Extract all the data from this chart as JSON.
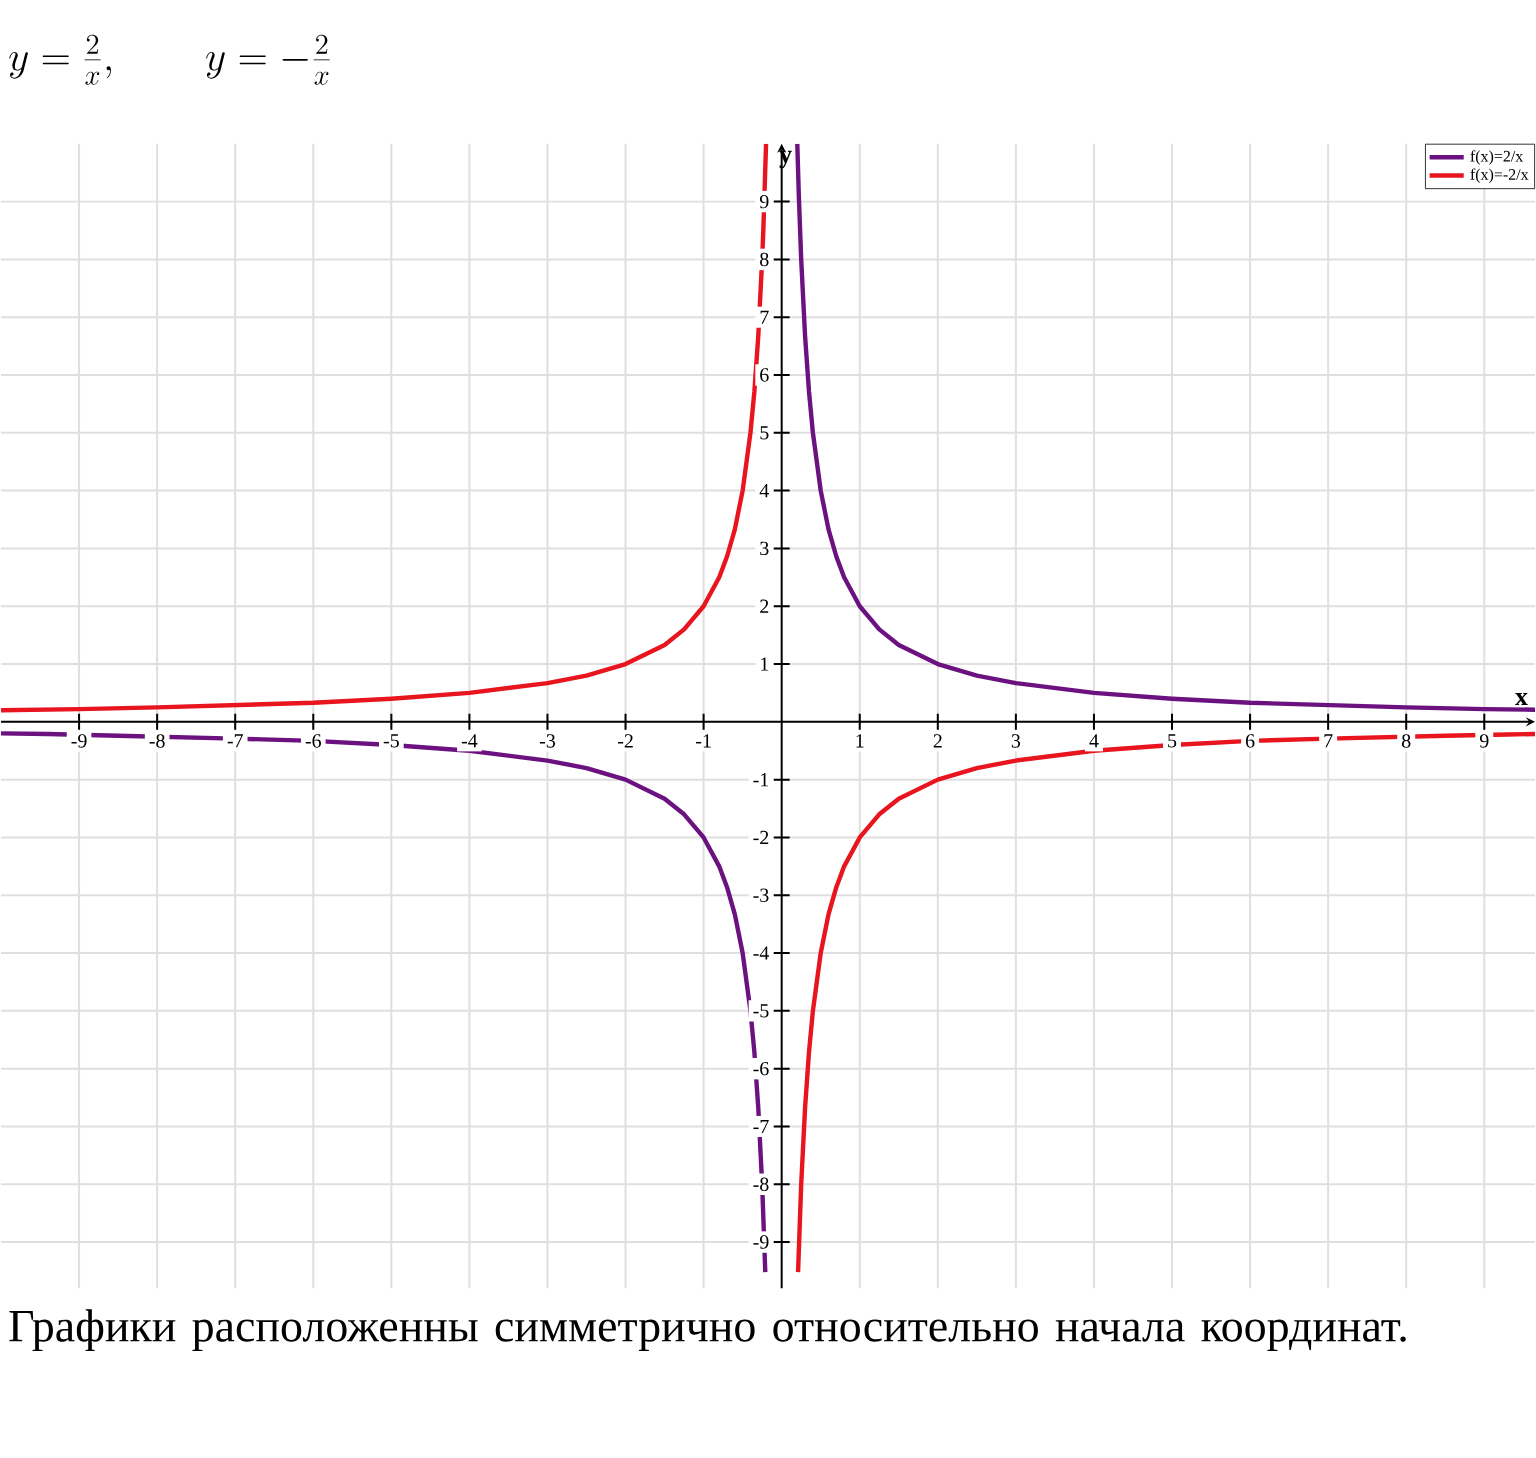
{
  "chart_data": {
    "type": "line",
    "title": "y=\\frac{2}{x},\\qquad y=-\\frac{2}{x}",
    "xlabel": "x",
    "ylabel": "y",
    "annotations": [
      "Графики расположенны симметрично относительно начала координат."
    ],
    "series": [
      {
        "name": "f(x)=2/x",
        "color": "#6b1280",
        "x": [
          -10,
          -9.4,
          -8.5,
          -7,
          -6,
          -5,
          -4,
          -3,
          -2.5,
          -2,
          -1.5,
          -1.25,
          -1,
          -0.8,
          -0.7,
          -0.6,
          -0.5,
          -0.4,
          -0.35,
          -0.3,
          -0.25,
          -0.21,
          0,
          0.2,
          0.22,
          0.25,
          0.3,
          0.35,
          0.4,
          0.5,
          0.6,
          0.7,
          0.8,
          1,
          1.25,
          1.5,
          2,
          2.5,
          3,
          4,
          5,
          6,
          7,
          8,
          9,
          9.65
        ],
        "values": [
          -0.2,
          -0.21,
          -0.24,
          -0.29,
          -0.33,
          -0.4,
          -0.5,
          -0.67,
          -0.8,
          -1,
          -1.33,
          -1.6,
          -2,
          -2.5,
          -2.86,
          -3.33,
          -4,
          -5,
          -5.71,
          -6.67,
          -8,
          -9.52,
          null,
          10,
          9.09,
          8,
          6.67,
          5.71,
          5,
          4,
          3.33,
          2.86,
          2.5,
          2,
          1.6,
          1.33,
          1,
          0.8,
          0.67,
          0.5,
          0.4,
          0.33,
          0.29,
          0.25,
          0.22,
          0.21
        ]
      },
      {
        "name": "f(x)=-2/x",
        "color": "#e8141e",
        "x": [
          -10,
          -9,
          -8,
          -7,
          -6,
          -5,
          -4,
          -3,
          -2.5,
          -2,
          -1.5,
          -1.25,
          -1,
          -0.8,
          -0.7,
          -0.6,
          -0.5,
          -0.4,
          -0.35,
          -0.3,
          -0.25,
          -0.235,
          -0.2,
          0,
          0.21,
          0.25,
          0.3,
          0.35,
          0.4,
          0.5,
          0.6,
          0.7,
          0.8,
          1,
          1.25,
          1.5,
          2,
          2.5,
          3,
          4,
          5,
          6,
          7,
          8.5,
          9.3,
          9.65
        ],
        "values": [
          0.2,
          0.22,
          0.25,
          0.29,
          0.33,
          0.4,
          0.5,
          0.67,
          0.8,
          1,
          1.33,
          1.6,
          2,
          2.5,
          2.86,
          3.33,
          4,
          5,
          5.71,
          6.67,
          8,
          8.51,
          10,
          null,
          -9.52,
          -8,
          -6.67,
          -5.71,
          -5,
          -4,
          -3.33,
          -2.86,
          -2.5,
          -2,
          -1.6,
          -1.33,
          -1,
          -0.8,
          -0.67,
          -0.5,
          -0.4,
          -0.33,
          -0.29,
          -0.24,
          -0.22,
          -0.21
        ]
      }
    ],
    "xlim": [
      -10,
      9.65
    ],
    "ylim": [
      -9.8,
      10
    ],
    "xticks": [
      -9,
      -8,
      -7,
      -6,
      -5,
      -4,
      -3,
      -2,
      -1,
      1,
      2,
      3,
      4,
      5,
      6,
      7,
      8,
      9
    ],
    "yticks": [
      -9,
      -8,
      -7,
      -6,
      -5,
      -4,
      -3,
      -2,
      -1,
      1,
      2,
      3,
      4,
      5,
      6,
      7,
      8,
      9
    ],
    "grid": true,
    "legend": "top right",
    "marker": "none",
    "line_style": "solid"
  }
}
